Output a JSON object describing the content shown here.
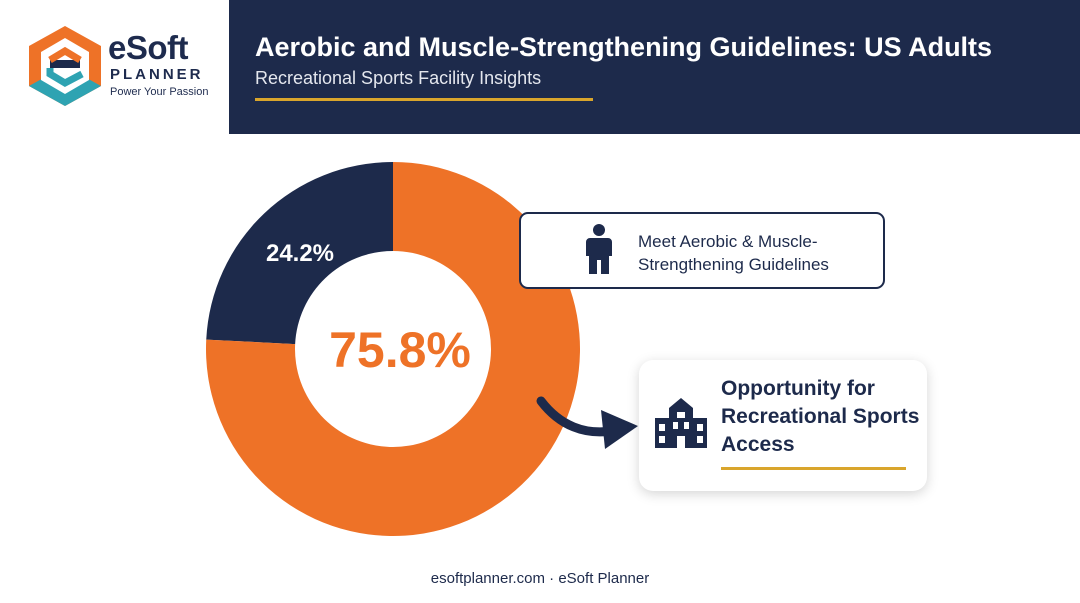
{
  "brand": {
    "name": "eSoft",
    "sub": "PLANNER",
    "tagline": "Power Your Passion",
    "colors": {
      "orange": "#ee7227",
      "navy": "#1d2a4b",
      "teal": "#2ea3b2",
      "gold": "#d9a52c"
    }
  },
  "header": {
    "title": "Aerobic and Muscle-Strengthening Guidelines: US Adults",
    "subtitle": "Recreational Sports Facility Insights"
  },
  "chart_data": {
    "type": "pie",
    "style": "donut",
    "slices": [
      {
        "label": "Meet Aerobic & Muscle-Strengthening Guidelines",
        "value": 24.2,
        "display": "24.2%",
        "color": "#1d2a4b"
      },
      {
        "label": "Opportunity for Recreational Sports Access",
        "value": 75.8,
        "display": "75.8%",
        "color": "#ee7227"
      }
    ],
    "center_label": "75.8%",
    "legend_placement": "right"
  },
  "callouts": {
    "meet": {
      "label": "Meet Aerobic & Muscle-Strengthening Guidelines",
      "icon": "person-icon"
    },
    "opportunity": {
      "label": "Opportunity for Recreational Sports Access",
      "icon": "building-icon"
    }
  },
  "footer": {
    "text": "esoftplanner.com · eSoft Planner"
  }
}
